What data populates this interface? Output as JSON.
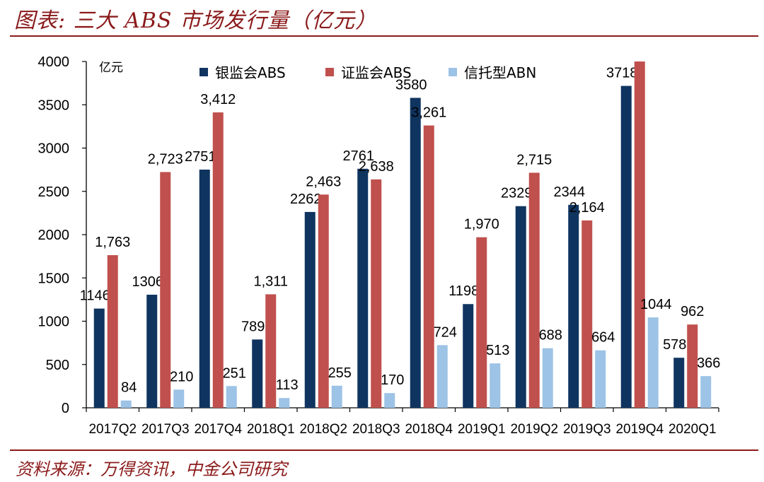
{
  "header": {
    "title": "图表: 三大 ABS 市场发行量（亿元）"
  },
  "footer": {
    "source": "资料来源：万得资讯，中金公司研究"
  },
  "colors": {
    "accent": "#8b1a1a"
  },
  "chart_data": {
    "type": "bar",
    "title": "三大 ABS 市场发行量（亿元）",
    "unit_label": "亿元",
    "ylim": [
      0,
      4000
    ],
    "yticks": [
      0,
      500,
      1000,
      1500,
      2000,
      2500,
      3000,
      3500,
      4000
    ],
    "categories": [
      "2017Q2",
      "2017Q3",
      "2017Q4",
      "2018Q1",
      "2018Q2",
      "2018Q3",
      "2018Q4",
      "2019Q1",
      "2019Q2",
      "2019Q3",
      "2019Q4",
      "2020Q1"
    ],
    "legend_position": "top",
    "series": [
      {
        "name": "银监会ABS",
        "color": "#0f3460",
        "values": [
          1146,
          1306,
          2751,
          789,
          2262,
          2761,
          3580,
          1198,
          2329,
          2344,
          3718,
          578
        ],
        "labels": [
          "1146",
          "1306",
          "2751",
          "789",
          "2262",
          "2761",
          "3580",
          "1198",
          "2329",
          "2344",
          "3718",
          "578"
        ]
      },
      {
        "name": "证监会ABS",
        "color": "#c0504d",
        "values": [
          1763,
          2723,
          3412,
          1311,
          2463,
          2638,
          3261,
          1970,
          2715,
          2164,
          4000,
          962
        ],
        "labels": [
          "1,763",
          "2,723",
          "3,412",
          "1,311",
          "2,463",
          "2,638",
          "3,261",
          "1,970",
          "2,715",
          "2,164",
          "",
          "962"
        ]
      },
      {
        "name": "信托型ABN",
        "color": "#9dc3e6",
        "values": [
          84,
          210,
          251,
          113,
          255,
          170,
          724,
          513,
          688,
          664,
          1044,
          366
        ],
        "labels": [
          "84",
          "210",
          "251",
          "113",
          "255",
          "170",
          "724",
          "513",
          "688",
          "664",
          "1044",
          "366"
        ]
      }
    ]
  }
}
